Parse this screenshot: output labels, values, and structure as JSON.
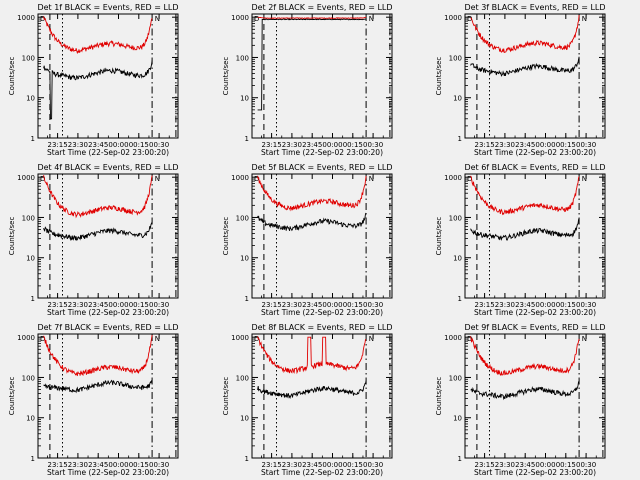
{
  "chart_data": [
    {
      "type": "line",
      "title": "Det 1f BLACK = Events, RED = LLD",
      "xlabel": "Start Time (22-Sep-02 23:00:20)",
      "ylabel": "Counts/sec",
      "xticks": [
        "23:15",
        "23:30",
        "23:45",
        "00:00",
        "00:15",
        "00:30"
      ],
      "yticks": [
        "1",
        "10",
        "100",
        "1000"
      ],
      "y_scale": "log",
      "ylim": [
        1,
        1200
      ],
      "markers": [
        "D",
        "N"
      ],
      "series": [
        {
          "color": "#e00000",
          "profile": "bowl",
          "start": 1000,
          "level": 165,
          "end": 1000
        },
        {
          "color": "#000000",
          "profile": "bowl",
          "start": 60,
          "level": 35,
          "end": 80,
          "dip": 3
        }
      ]
    },
    {
      "type": "line",
      "title": "Det 2f BLACK = Events, RED = LLD",
      "xlabel": "Start Time (22-Sep-02 23:00:20)",
      "ylabel": "Counts/sec",
      "xticks": [
        "23:15",
        "23:30",
        "23:45",
        "00:00",
        "00:15",
        "00:30"
      ],
      "yticks": [
        "1",
        "10",
        "100",
        "1000"
      ],
      "y_scale": "log",
      "ylim": [
        1,
        1200
      ],
      "markers": [
        "D",
        "N"
      ],
      "series": [
        {
          "color": "#e00000",
          "profile": "flat",
          "start": 1000,
          "level": 950,
          "end": 1000
        },
        {
          "color": "#000000",
          "profile": "flat",
          "start": 5,
          "level": 880,
          "end": 900
        }
      ]
    },
    {
      "type": "line",
      "title": "Det 3f BLACK = Events, RED = LLD",
      "xlabel": "Start Time (22-Sep-02 23:00:20)",
      "ylabel": "Counts/sec",
      "xticks": [
        "23:15",
        "23:30",
        "23:45",
        "00:00",
        "00:15",
        "00:30"
      ],
      "yticks": [
        "1",
        "10",
        "100",
        "1000"
      ],
      "y_scale": "log",
      "ylim": [
        1,
        1200
      ],
      "markers": [
        "D",
        "N"
      ],
      "series": [
        {
          "color": "#e00000",
          "profile": "bowl",
          "start": 1000,
          "level": 170,
          "end": 1000
        },
        {
          "color": "#000000",
          "profile": "bowl",
          "start": 70,
          "level": 45,
          "end": 100
        }
      ]
    },
    {
      "type": "line",
      "title": "Det 4f BLACK = Events, RED = LLD",
      "xlabel": "Start Time (22-Sep-02 23:00:20)",
      "ylabel": "Counts/sec",
      "xticks": [
        "23:15",
        "23:30",
        "23:45",
        "00:00",
        "00:15",
        "00:30"
      ],
      "yticks": [
        "1",
        "10",
        "100",
        "1000"
      ],
      "y_scale": "log",
      "ylim": [
        1,
        1200
      ],
      "markers": [
        "D",
        "N"
      ],
      "series": [
        {
          "color": "#e00000",
          "profile": "bowl",
          "start": 1000,
          "level": 130,
          "end": 1000
        },
        {
          "color": "#000000",
          "profile": "bowl",
          "start": 55,
          "level": 35,
          "end": 80
        }
      ]
    },
    {
      "type": "line",
      "title": "Det 5f BLACK = Events, RED = LLD",
      "xlabel": "Start Time (22-Sep-02 23:00:20)",
      "ylabel": "Counts/sec",
      "xticks": [
        "23:15",
        "23:30",
        "23:45",
        "00:00",
        "00:15",
        "00:30"
      ],
      "yticks": [
        "1",
        "10",
        "100",
        "1000"
      ],
      "y_scale": "log",
      "ylim": [
        1,
        1200
      ],
      "markers": [
        "D",
        "N"
      ],
      "series": [
        {
          "color": "#e00000",
          "profile": "bowl",
          "start": 1000,
          "level": 190,
          "end": 1000
        },
        {
          "color": "#000000",
          "profile": "bowl",
          "start": 100,
          "level": 60,
          "end": 120
        }
      ]
    },
    {
      "type": "line",
      "title": "Det 6f BLACK = Events, RED = LLD",
      "xlabel": "Start Time (22-Sep-02 23:00:20)",
      "ylabel": "Counts/sec",
      "xticks": [
        "23:15",
        "23:30",
        "23:45",
        "00:00",
        "00:15",
        "00:30"
      ],
      "yticks": [
        "1",
        "10",
        "100",
        "1000"
      ],
      "y_scale": "log",
      "ylim": [
        1,
        1200
      ],
      "markers": [
        "D",
        "N"
      ],
      "series": [
        {
          "color": "#e00000",
          "profile": "bowl",
          "start": 1000,
          "level": 150,
          "end": 1000
        },
        {
          "color": "#000000",
          "profile": "bowl",
          "start": 50,
          "level": 35,
          "end": 90
        }
      ]
    },
    {
      "type": "line",
      "title": "Det 7f BLACK = Events, RED = LLD",
      "xlabel": "Start Time (22-Sep-02 23:00:20)",
      "ylabel": "Counts/sec",
      "xticks": [
        "23:15",
        "23:30",
        "23:45",
        "00:00",
        "00:15",
        "00:30"
      ],
      "yticks": [
        "1",
        "10",
        "100",
        "1000"
      ],
      "y_scale": "log",
      "ylim": [
        1,
        1200
      ],
      "markers": [
        "D",
        "N"
      ],
      "series": [
        {
          "color": "#e00000",
          "profile": "bowl",
          "start": 1000,
          "level": 135,
          "end": 1000
        },
        {
          "color": "#000000",
          "profile": "bowl",
          "start": 60,
          "level": 55,
          "end": 80
        }
      ]
    },
    {
      "type": "line",
      "title": "Det 8f BLACK = Events, RED = LLD",
      "xlabel": "Start Time (22-Sep-02 23:00:20)",
      "ylabel": "Counts/sec",
      "xticks": [
        "23:15",
        "23:30",
        "23:45",
        "00:00",
        "00:15",
        "00:30"
      ],
      "yticks": [
        "1",
        "10",
        "100",
        "1000"
      ],
      "y_scale": "log",
      "ylim": [
        1,
        1200
      ],
      "markers": [
        "D",
        "N"
      ],
      "series": [
        {
          "color": "#e00000",
          "profile": "bowl",
          "start": 1000,
          "level": 160,
          "end": 1000,
          "spike": true
        },
        {
          "color": "#000000",
          "profile": "bowl",
          "start": 55,
          "level": 40,
          "end": 80
        }
      ]
    },
    {
      "type": "line",
      "title": "Det 9f BLACK = Events, RED = LLD",
      "xlabel": "Start Time (22-Sep-02 23:00:20)",
      "ylabel": "Counts/sec",
      "xticks": [
        "23:15",
        "23:30",
        "23:45",
        "00:00",
        "00:15",
        "00:30"
      ],
      "yticks": [
        "1",
        "10",
        "100",
        "1000"
      ],
      "y_scale": "log",
      "ylim": [
        1,
        1200
      ],
      "markers": [
        "D",
        "N"
      ],
      "series": [
        {
          "color": "#e00000",
          "profile": "bowl",
          "start": 1000,
          "level": 140,
          "end": 1000
        },
        {
          "color": "#000000",
          "profile": "bowl",
          "start": 50,
          "level": 38,
          "end": 80
        }
      ]
    }
  ]
}
